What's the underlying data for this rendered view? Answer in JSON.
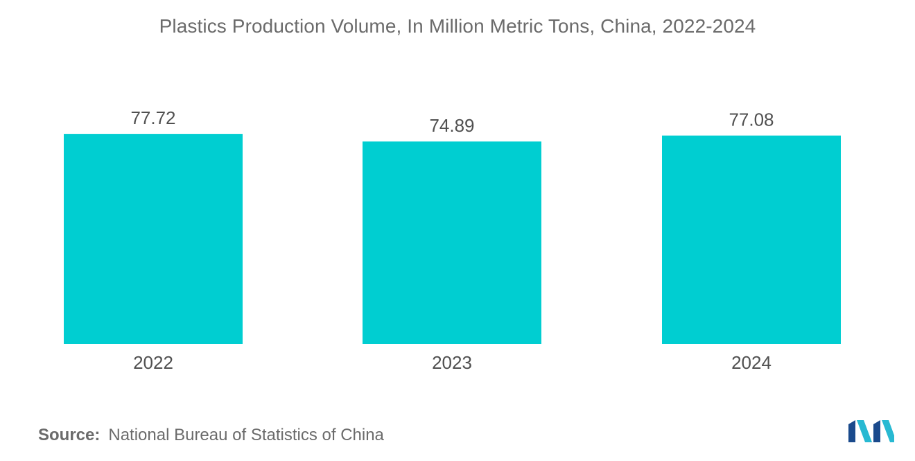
{
  "chart_data": {
    "type": "bar",
    "title": "Plastics Production Volume, In Million Metric Tons, China,  2022-2024",
    "categories": [
      "2022",
      "2023",
      "2024"
    ],
    "values": [
      77.72,
      74.89,
      77.08
    ],
    "value_labels": [
      "77.72",
      "74.89",
      "77.08"
    ],
    "xlabel": "",
    "ylabel": "",
    "ylim": [
      0,
      78
    ],
    "grid": false,
    "legend": "none",
    "bar_color": "#00ced1"
  },
  "source": {
    "label": "Source:",
    "text": "National Bureau of Statistics of China"
  },
  "logo": {
    "icon": "mordor-intelligence-logo-icon",
    "colors": [
      "#1a4a8c",
      "#28b9d2"
    ]
  }
}
